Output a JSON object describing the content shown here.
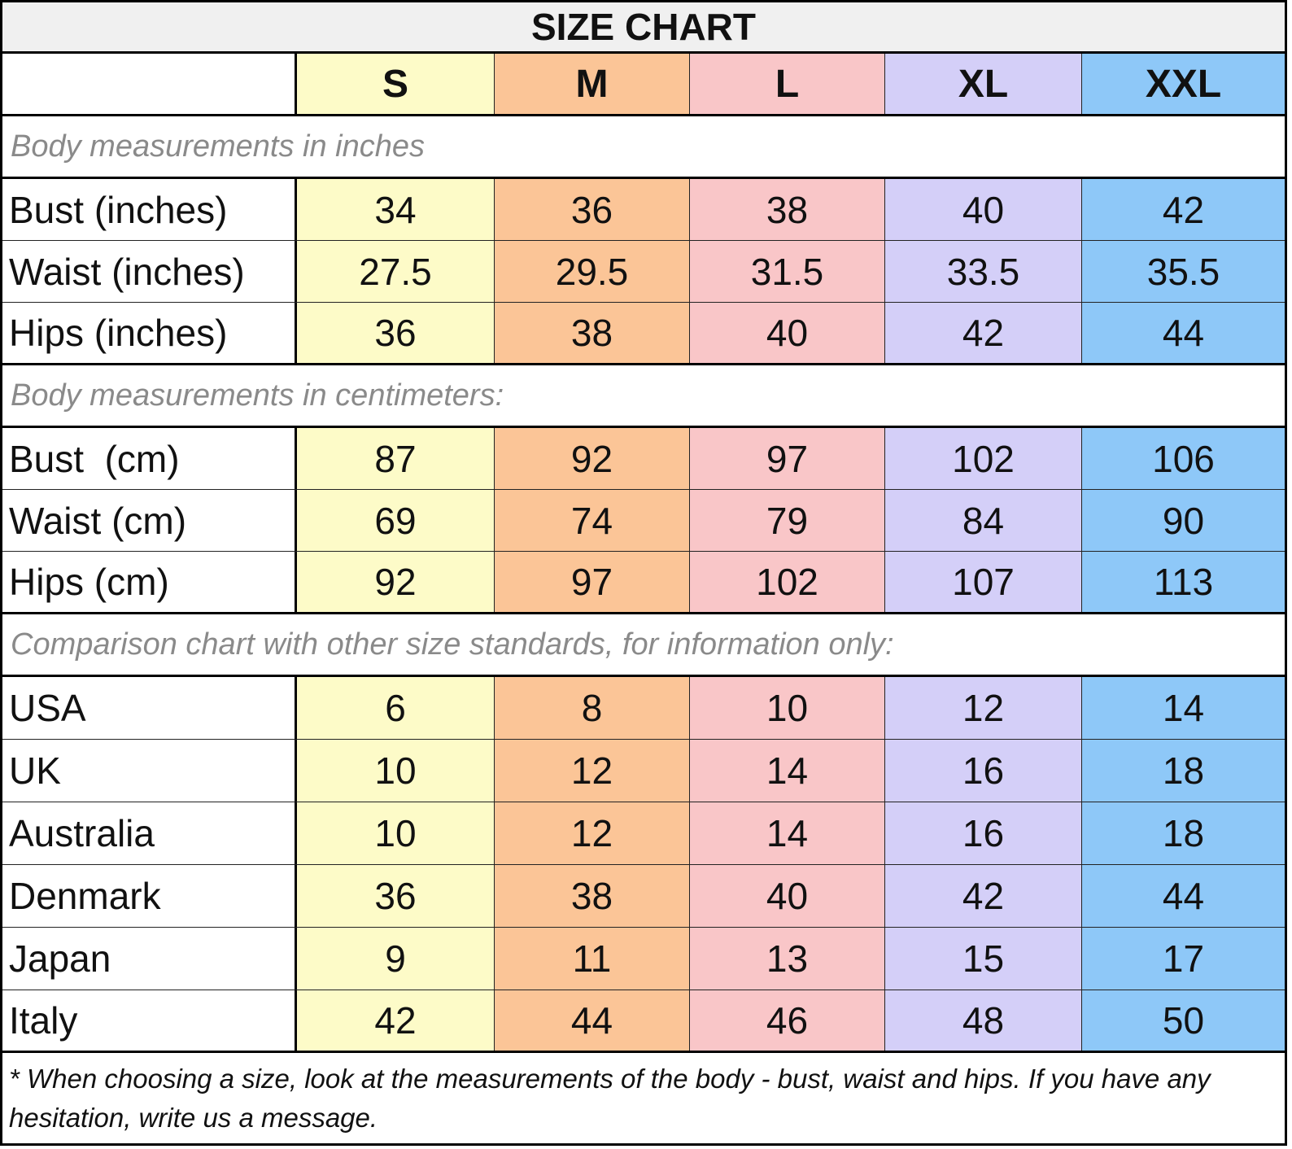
{
  "title": "SIZE CHART",
  "sizes": [
    "S",
    "M",
    "L",
    "XL",
    "XXL"
  ],
  "column_colors": [
    "#fdfbc8",
    "#fbc597",
    "#f9c6c8",
    "#d4cff8",
    "#8ec8f8"
  ],
  "sections": [
    {
      "heading": "Body measurements in inches",
      "rows": [
        {
          "label": "Bust (inches)",
          "values": [
            "34",
            "36",
            "38",
            "40",
            "42"
          ]
        },
        {
          "label": "Waist (inches)",
          "values": [
            "27.5",
            "29.5",
            "31.5",
            "33.5",
            "35.5"
          ]
        },
        {
          "label": "Hips (inches)",
          "values": [
            "36",
            "38",
            "40",
            "42",
            "44"
          ]
        }
      ]
    },
    {
      "heading": "Body measurements in centimeters:",
      "rows": [
        {
          "label": "Bust  (cm)",
          "values": [
            "87",
            "92",
            "97",
            "102",
            "106"
          ]
        },
        {
          "label": "Waist (cm)",
          "values": [
            "69",
            "74",
            "79",
            "84",
            "90"
          ]
        },
        {
          "label": "Hips (cm)",
          "values": [
            "92",
            "97",
            "102",
            "107",
            "113"
          ]
        }
      ]
    },
    {
      "heading": "Comparison chart with other size standards, for information only:",
      "rows": [
        {
          "label": "USA",
          "values": [
            "6",
            "8",
            "10",
            "12",
            "14"
          ]
        },
        {
          "label": "UK",
          "values": [
            "10",
            "12",
            "14",
            "16",
            "18"
          ]
        },
        {
          "label": "Australia",
          "values": [
            "10",
            "12",
            "14",
            "16",
            "18"
          ]
        },
        {
          "label": "Denmark",
          "values": [
            "36",
            "38",
            "40",
            "42",
            "44"
          ]
        },
        {
          "label": "Japan",
          "values": [
            "9",
            "11",
            "13",
            "15",
            "17"
          ]
        },
        {
          "label": "Italy",
          "values": [
            "42",
            "44",
            "46",
            "48",
            "50"
          ]
        }
      ]
    }
  ],
  "footnote": "* When choosing a size, look at the measurements of the body - bust, waist and hips. If you have any hesitation, write us a message."
}
